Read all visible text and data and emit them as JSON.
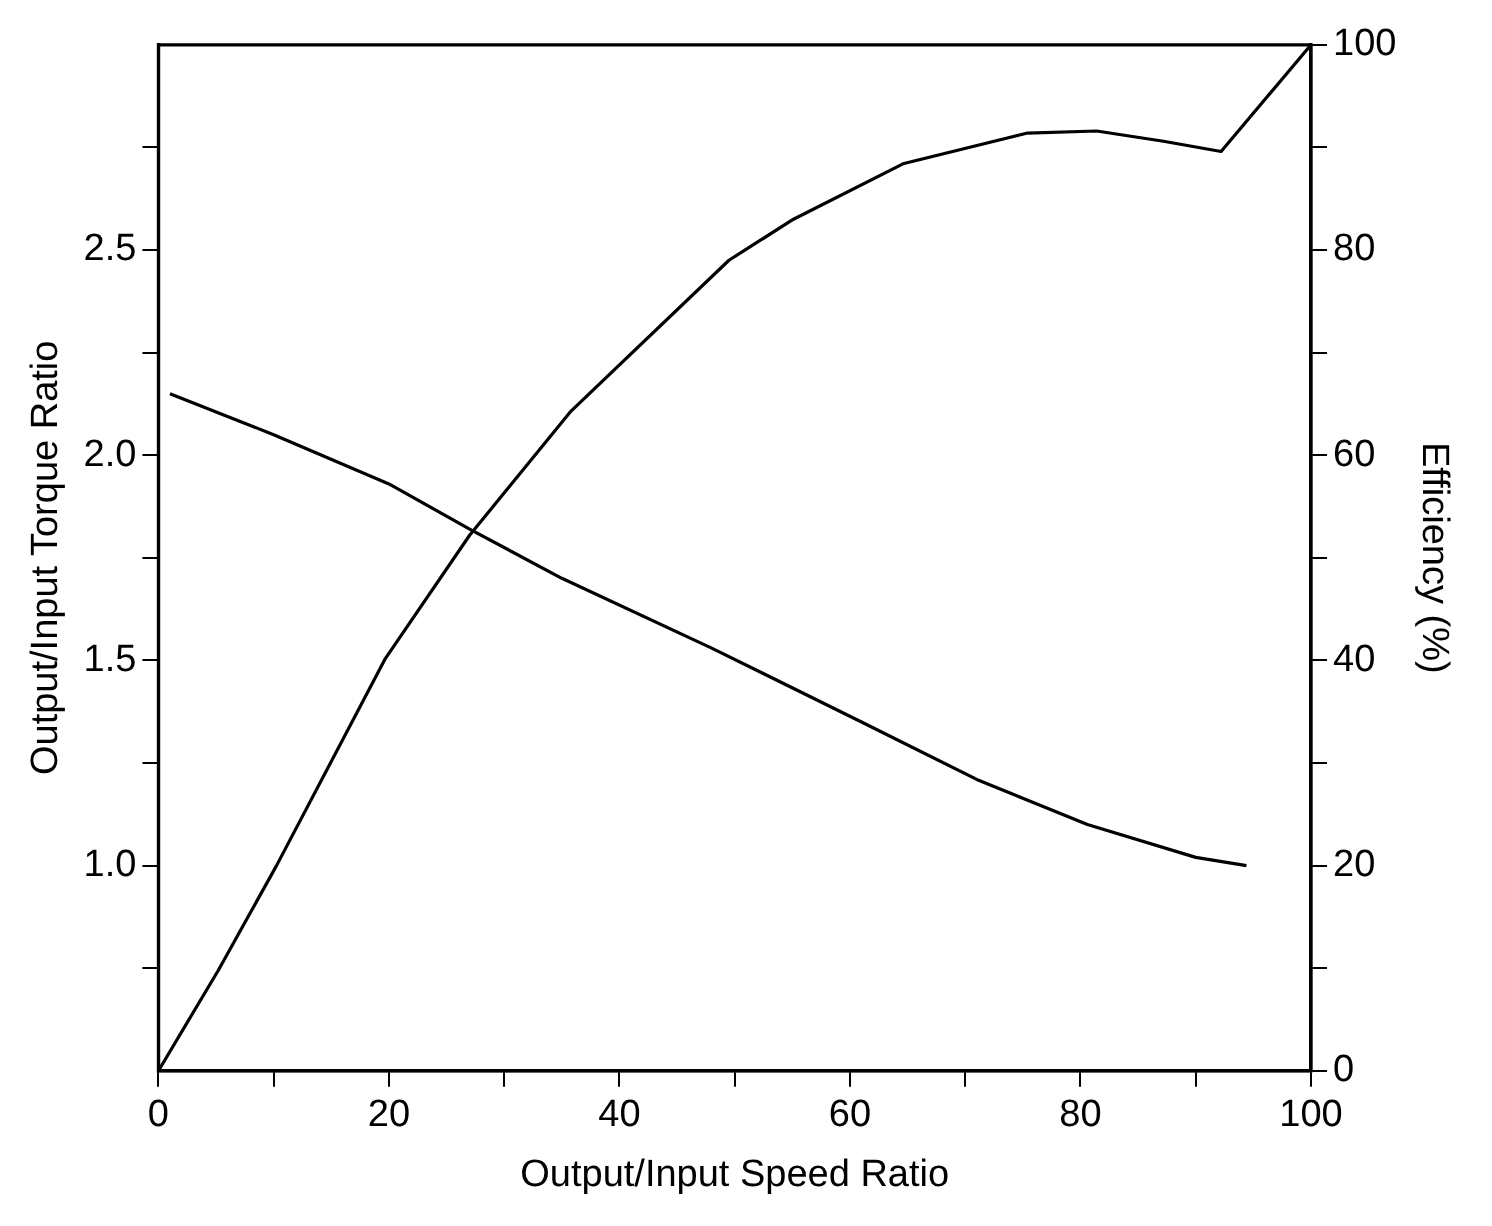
{
  "chart_data": {
    "type": "line",
    "xlabel": "Output/Input Speed Ratio",
    "ylabel": "Output/Input Torque Ratio",
    "y2label": "Efficiency (%)",
    "xlim": [
      0,
      100
    ],
    "xticks": [
      0,
      {
        "value": 10,
        "label": null
      },
      20,
      {
        "value": 30,
        "label": null
      },
      40,
      {
        "value": 50,
        "label": null
      },
      60,
      {
        "value": 70,
        "label": null
      },
      80,
      {
        "value": 90,
        "label": null
      },
      100
    ],
    "ylim": [
      0.5,
      3.0
    ],
    "yticks": [
      {
        "value": 0.75,
        "label": null
      },
      {
        "value": 1.0,
        "label": "1.0"
      },
      {
        "value": 1.25,
        "label": null
      },
      1.5,
      {
        "value": 1.75,
        "label": null
      },
      {
        "value": 2.0,
        "label": "2.0"
      },
      {
        "value": 2.25,
        "label": null
      },
      2.5,
      {
        "value": 2.75,
        "label": null
      }
    ],
    "y2lim": [
      0,
      100
    ],
    "y2ticks": [
      0,
      {
        "value": 10,
        "label": null
      },
      20,
      {
        "value": 30,
        "label": null
      },
      40,
      {
        "value": 50,
        "label": null
      },
      60,
      {
        "value": 70,
        "label": null
      },
      80,
      {
        "value": 90,
        "label": null
      },
      100
    ],
    "grid": false,
    "legend": false,
    "marker": "none",
    "line_style": "solid",
    "series": [
      {
        "color": "#000000",
        "x": [
          1,
          10,
          20,
          27,
          35,
          48,
          61,
          71,
          80.6,
          90,
          94.4
        ],
        "values": [
          2.15,
          2.05,
          1.93,
          1.82,
          1.7,
          1.53,
          1.35,
          1.21,
          1.1,
          1.02,
          1.0
        ]
      },
      {
        "color": "#000000",
        "axis": "y2",
        "x": [
          0,
          5.2,
          10.2,
          19.7,
          27,
          35.8,
          49.5,
          55.1,
          64.6,
          75.4,
          81.4,
          87.2,
          92.2,
          100
        ],
        "values": [
          0,
          9.8,
          19.9,
          40.2,
          52.2,
          64.3,
          79,
          83,
          88.4,
          91.4,
          91.6,
          90.6,
          89.6,
          100
        ]
      }
    ]
  }
}
